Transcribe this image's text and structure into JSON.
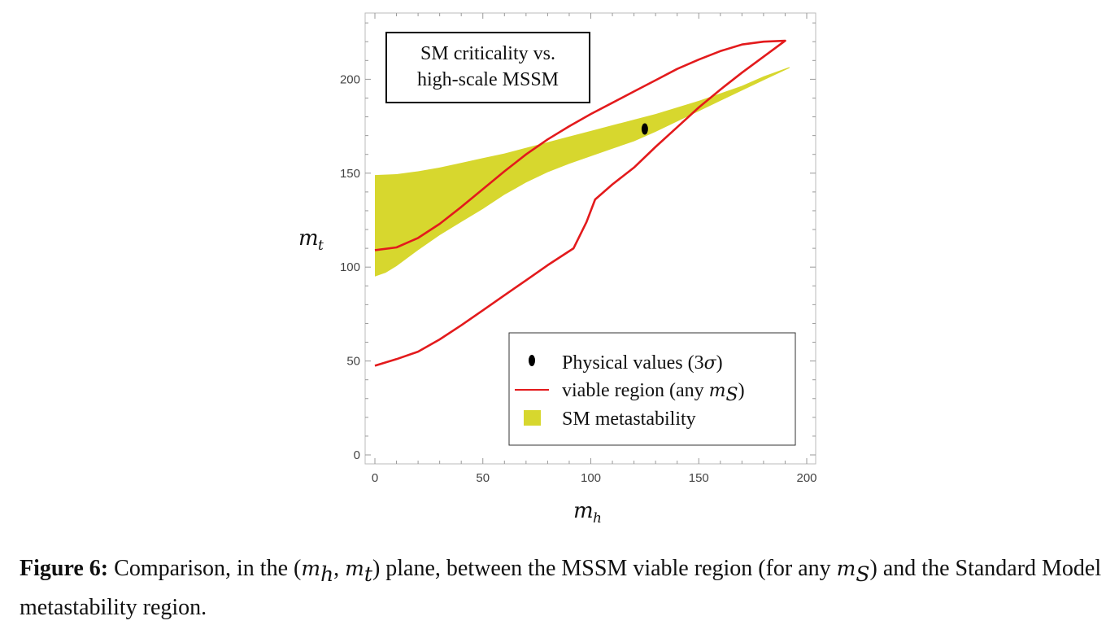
{
  "chart_data": {
    "type": "area",
    "title_box": [
      "SM criticality vs.",
      "high-scale MSSM"
    ],
    "xlabel": "m_h",
    "ylabel": "m_t",
    "xlim": [
      0,
      200
    ],
    "ylim": [
      0,
      240
    ],
    "x_ticks": [
      0,
      50,
      100,
      150,
      200
    ],
    "y_ticks": [
      0,
      50,
      100,
      150,
      200
    ],
    "legend_placement": "bottom-right",
    "legend": [
      {
        "label": "Physical values (3",
        "sigma": "σ",
        "close": ")"
      },
      {
        "label": "viable region (any ",
        "var": "m",
        "sub": "S",
        "close": ")"
      },
      {
        "label": "SM metastability"
      }
    ],
    "colors": {
      "viable": "#e31a1c",
      "metastability": "#d7d72e",
      "physical": "#000000"
    },
    "physical_values": {
      "x": 125,
      "y": 173.5
    },
    "viable_region_boundary": [
      [
        0,
        109
      ],
      [
        10,
        110.5
      ],
      [
        20,
        115.5
      ],
      [
        30,
        123
      ],
      [
        40,
        132
      ],
      [
        50,
        141.5
      ],
      [
        60,
        151
      ],
      [
        70,
        160
      ],
      [
        80,
        168
      ],
      [
        90,
        175
      ],
      [
        100,
        181.5
      ],
      [
        110,
        187.5
      ],
      [
        120,
        193.5
      ],
      [
        130,
        199.5
      ],
      [
        140,
        205.5
      ],
      [
        150,
        210.5
      ],
      [
        160,
        215
      ],
      [
        170,
        218.5
      ],
      [
        180,
        220
      ],
      [
        190,
        220.5
      ],
      [
        180,
        212
      ],
      [
        170,
        203.5
      ],
      [
        160,
        194.5
      ],
      [
        150,
        185
      ],
      [
        140,
        174.5
      ],
      [
        130,
        164
      ],
      [
        120,
        153
      ],
      [
        110,
        144
      ],
      [
        102,
        136
      ],
      [
        98,
        124
      ],
      [
        92,
        110
      ],
      [
        80,
        101
      ],
      [
        70,
        93
      ],
      [
        60,
        85
      ],
      [
        50,
        77
      ],
      [
        40,
        69
      ],
      [
        30,
        61.5
      ],
      [
        20,
        55
      ],
      [
        10,
        51
      ],
      [
        0,
        47.5
      ]
    ],
    "sm_metastability_upper": [
      [
        0,
        149
      ],
      [
        10,
        149.5
      ],
      [
        20,
        151
      ],
      [
        30,
        153
      ],
      [
        40,
        155.5
      ],
      [
        50,
        158
      ],
      [
        60,
        160.5
      ],
      [
        70,
        163.5
      ],
      [
        80,
        166.5
      ],
      [
        90,
        169.5
      ],
      [
        100,
        172.5
      ],
      [
        110,
        175.5
      ],
      [
        120,
        178.5
      ],
      [
        130,
        181.5
      ],
      [
        140,
        185
      ],
      [
        150,
        188.5
      ],
      [
        160,
        192.5
      ],
      [
        170,
        196.5
      ],
      [
        180,
        201.5
      ],
      [
        192,
        206.5
      ]
    ],
    "sm_metastability_lower": [
      [
        192,
        206
      ],
      [
        180,
        199.5
      ],
      [
        170,
        194
      ],
      [
        160,
        188.5
      ],
      [
        150,
        183
      ],
      [
        140,
        177.5
      ],
      [
        130,
        172
      ],
      [
        120,
        167
      ],
      [
        110,
        163
      ],
      [
        100,
        159
      ],
      [
        90,
        155
      ],
      [
        80,
        150.5
      ],
      [
        70,
        145
      ],
      [
        60,
        138.5
      ],
      [
        50,
        131
      ],
      [
        40,
        124
      ],
      [
        30,
        117
      ],
      [
        20,
        109
      ],
      [
        10,
        100.5
      ],
      [
        5,
        97
      ],
      [
        0,
        95
      ]
    ]
  },
  "caption": {
    "label": "Figure 6:",
    "part1": "Comparison, in the (",
    "mh_var": "m",
    "mh_sub": "h",
    "comma": ", ",
    "mt_var": "m",
    "mt_sub": "t",
    "part2": ") plane, between the MSSM viable region (for any ",
    "ms_var": "m",
    "ms_sub": "S",
    "part3": ") and the Standard Model metastability region."
  }
}
